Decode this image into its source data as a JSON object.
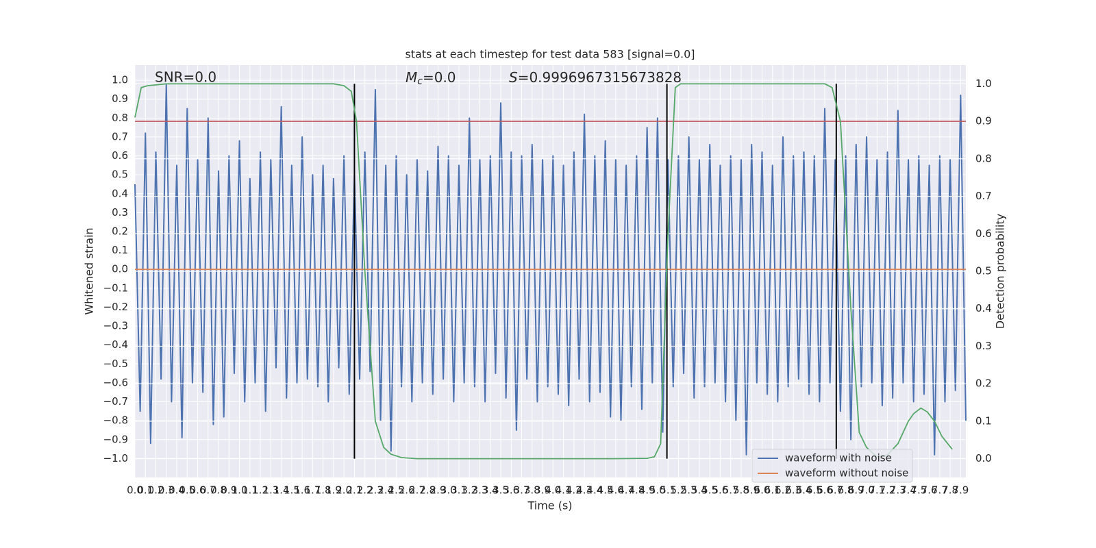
{
  "chart_data": {
    "type": "line",
    "title": "stats at each timestep for test data 583 [signal=0.0]",
    "xlabel": "Time (s)",
    "ylabel": "Whitened strain",
    "y2label": "Detection probability",
    "annotations": [
      {
        "text": "SNR=0.0"
      },
      {
        "italic": "M",
        "sub": "c",
        "text": "=0.0"
      },
      {
        "italic": "S",
        "text": "=0.9996967315673828"
      }
    ],
    "xlim": [
      0,
      7.95
    ],
    "ylim": [
      -1.1,
      1.08
    ],
    "y2lim": [
      -0.05,
      1.05
    ],
    "grid": true,
    "legend": "lower right",
    "xticks": [
      {
        "value": 0,
        "label": "0.0"
      },
      0.1,
      0.2,
      0.3,
      0.4,
      0.5,
      0.6,
      0.7,
      0.8,
      0.9,
      {
        "value": 1,
        "label": "1.0"
      },
      1.1,
      1.2,
      1.3,
      1.4,
      1.5,
      1.6,
      1.7,
      1.8,
      1.9,
      {
        "value": 2,
        "label": "2.0"
      },
      2.1,
      2.2,
      2.3,
      2.4,
      2.5,
      2.6,
      2.7,
      2.8,
      2.9,
      {
        "value": 3,
        "label": "3.0"
      },
      3.1,
      3.2,
      3.3,
      3.4,
      3.5,
      3.6,
      3.7,
      3.8,
      3.9,
      {
        "value": 4,
        "label": "4.0"
      },
      4.1,
      4.2,
      4.3,
      4.4,
      4.5,
      4.6,
      4.7,
      4.8,
      4.9,
      {
        "value": 5,
        "label": "5.0"
      },
      5.1,
      5.2,
      5.3,
      5.4,
      5.5,
      5.6,
      5.7,
      5.8,
      5.9,
      {
        "value": 6,
        "label": "6.0"
      },
      6.1,
      6.2,
      6.3,
      6.4,
      6.5,
      6.6,
      6.7,
      6.8,
      6.9,
      {
        "value": 7,
        "label": "7.0"
      },
      7.1,
      7.2,
      7.3,
      7.4,
      7.5,
      7.6,
      7.7,
      7.8,
      7.9
    ],
    "yticks": [
      {
        "value": -1,
        "label": "−1.0"
      },
      {
        "value": -0.9,
        "label": "−0.9"
      },
      {
        "value": -0.8,
        "label": "−0.8"
      },
      {
        "value": -0.7,
        "label": "−0.7"
      },
      {
        "value": -0.6,
        "label": "−0.6"
      },
      {
        "value": -0.5,
        "label": "−0.5"
      },
      {
        "value": -0.4,
        "label": "−0.4"
      },
      {
        "value": -0.3,
        "label": "−0.3"
      },
      {
        "value": -0.2,
        "label": "−0.2"
      },
      {
        "value": -0.1,
        "label": "−0.1"
      },
      {
        "value": 0,
        "label": "0.0"
      },
      0.1,
      0.2,
      0.3,
      0.4,
      0.5,
      0.6,
      0.7,
      0.8,
      0.9,
      {
        "value": 1,
        "label": "1.0"
      }
    ],
    "y2ticks": [
      {
        "value": 0,
        "label": "0.0"
      },
      0.1,
      0.2,
      0.3,
      0.4,
      0.5,
      0.6,
      0.7,
      0.8,
      0.9,
      {
        "value": 1,
        "label": "1.0"
      }
    ],
    "series": [
      {
        "name": "waveform with noise",
        "color": "#4c72b0",
        "x": [
          0,
          0.05,
          0.1,
          0.15,
          0.2,
          0.25,
          0.3,
          0.35,
          0.4,
          0.45,
          0.5,
          0.55,
          0.6,
          0.65,
          0.7,
          0.75,
          0.8,
          0.85,
          0.9,
          0.95,
          1.0,
          1.05,
          1.1,
          1.15,
          1.2,
          1.25,
          1.3,
          1.35,
          1.4,
          1.45,
          1.5,
          1.55,
          1.6,
          1.65,
          1.7,
          1.75,
          1.8,
          1.85,
          1.9,
          1.95,
          2.0,
          2.05,
          2.1,
          2.15,
          2.2,
          2.25,
          2.3,
          2.35,
          2.4,
          2.45,
          2.5,
          2.55,
          2.6,
          2.65,
          2.7,
          2.75,
          2.8,
          2.85,
          2.9,
          2.95,
          3.0,
          3.05,
          3.1,
          3.15,
          3.2,
          3.25,
          3.3,
          3.35,
          3.4,
          3.45,
          3.5,
          3.55,
          3.6,
          3.65,
          3.7,
          3.75,
          3.8,
          3.85,
          3.9,
          3.95,
          4.0,
          4.05,
          4.1,
          4.15,
          4.2,
          4.25,
          4.3,
          4.35,
          4.4,
          4.45,
          4.5,
          4.55,
          4.6,
          4.65,
          4.7,
          4.75,
          4.8,
          4.85,
          4.9,
          4.95,
          5.0,
          5.05,
          5.1,
          5.15,
          5.2,
          5.25,
          5.3,
          5.35,
          5.4,
          5.45,
          5.5,
          5.55,
          5.6,
          5.65,
          5.7,
          5.75,
          5.8,
          5.85,
          5.9,
          5.95,
          6.0,
          6.05,
          6.1,
          6.15,
          6.2,
          6.25,
          6.3,
          6.35,
          6.4,
          6.45,
          6.5,
          6.55,
          6.6,
          6.65,
          6.7,
          6.75,
          6.8,
          6.85,
          6.9,
          6.95,
          7.0,
          7.05,
          7.1,
          7.15,
          7.2,
          7.25,
          7.3,
          7.35,
          7.4,
          7.45,
          7.5,
          7.55,
          7.6,
          7.65,
          7.7,
          7.75,
          7.8,
          7.85,
          7.9,
          7.95
        ],
        "values": [
          0.45,
          -0.75,
          0.72,
          -0.92,
          0.62,
          -0.58,
          0.98,
          -0.7,
          0.55,
          -0.89,
          0.85,
          -0.6,
          0.58,
          -0.65,
          0.8,
          -0.82,
          0.52,
          -0.78,
          0.6,
          -0.55,
          0.68,
          -0.7,
          0.48,
          -0.6,
          0.62,
          -0.75,
          0.58,
          -0.52,
          0.86,
          -0.68,
          0.55,
          -0.6,
          0.7,
          -0.58,
          0.5,
          -0.62,
          0.55,
          -0.7,
          0.48,
          -0.52,
          0.6,
          -0.66,
          0.5,
          -0.58,
          0.62,
          -0.54,
          0.95,
          -0.8,
          0.55,
          -0.96,
          0.6,
          -0.62,
          0.5,
          -0.7,
          0.58,
          -0.6,
          0.52,
          -0.66,
          0.65,
          -0.58,
          0.6,
          -0.7,
          0.55,
          -0.6,
          0.8,
          -0.62,
          0.58,
          -0.7,
          0.6,
          -0.55,
          0.88,
          -0.68,
          0.62,
          -0.85,
          0.6,
          -0.58,
          0.66,
          -0.7,
          0.58,
          -0.62,
          0.6,
          -0.66,
          0.55,
          -0.72,
          0.62,
          -0.58,
          0.82,
          -0.7,
          0.6,
          -0.65,
          0.68,
          -0.78,
          0.58,
          -0.8,
          0.55,
          -0.62,
          0.6,
          -0.74,
          0.75,
          -0.6,
          0.8,
          -0.86,
          0.58,
          -0.62,
          0.6,
          -0.55,
          0.7,
          -0.68,
          0.58,
          -0.62,
          0.66,
          -0.6,
          0.55,
          -0.7,
          0.6,
          -0.8,
          0.58,
          -0.98,
          0.66,
          -0.6,
          0.62,
          -0.66,
          0.55,
          -0.7,
          0.7,
          -0.62,
          0.6,
          -0.58,
          0.62,
          -0.66,
          0.6,
          -0.7,
          0.85,
          -0.6,
          0.58,
          -0.75,
          0.6,
          -0.9,
          0.66,
          -0.62,
          0.7,
          -0.6,
          0.58,
          -0.72,
          0.62,
          -0.68,
          0.84,
          -0.6,
          0.58,
          -0.7,
          0.6,
          -0.66,
          0.55,
          -0.98,
          0.6,
          -0.7,
          0.58,
          -0.64,
          0.92,
          -0.8
        ]
      },
      {
        "name": "waveform without noise",
        "color": "#dd8452",
        "x": [
          0,
          7.95
        ],
        "values": [
          0,
          0
        ]
      },
      {
        "color": "#55a868",
        "axis": "y2",
        "x": [
          0,
          0.06,
          0.12,
          0.3,
          0.6,
          1.0,
          1.5,
          1.9,
          2.0,
          2.07,
          2.12,
          2.2,
          2.3,
          2.38,
          2.45,
          2.55,
          2.7,
          3.5,
          4.5,
          4.9,
          4.97,
          5.03,
          5.1,
          5.17,
          5.22,
          5.6,
          6.2,
          6.6,
          6.67,
          6.75,
          6.85,
          6.93,
          7.0,
          7.1,
          7.2,
          7.3,
          7.4,
          7.45,
          7.52,
          7.58,
          7.65,
          7.72,
          7.82
        ],
        "values": [
          0.91,
          0.99,
          0.995,
          1,
          1,
          1,
          1,
          1,
          0.995,
          0.98,
          0.9,
          0.5,
          0.1,
          0.03,
          0.012,
          0.003,
          0,
          0,
          0,
          0.001,
          0.005,
          0.04,
          0.6,
          0.99,
          1,
          1,
          1,
          1,
          0.99,
          0.9,
          0.4,
          0.07,
          0.03,
          0.005,
          0.01,
          0.04,
          0.1,
          0.12,
          0.135,
          0.125,
          0.1,
          0.06,
          0.025
        ]
      }
    ],
    "threshold": {
      "axis": "y2",
      "value": 0.9,
      "color": "#c44e52"
    },
    "vlines": [
      2.1,
      5.09,
      6.71
    ]
  }
}
